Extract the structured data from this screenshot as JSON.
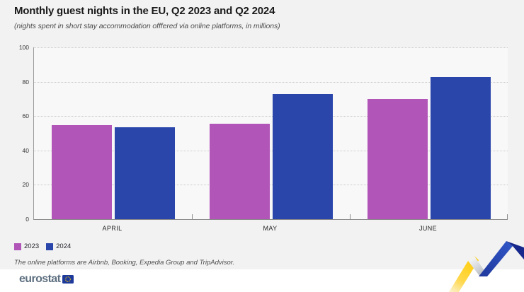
{
  "header": {
    "title": "Monthly guest nights in the EU, Q2 2023 and Q2 2024",
    "subtitle": "(nights spent in short stay accommodation offfered via online platforms, in millions)"
  },
  "chart_data": {
    "type": "bar",
    "title": "Monthly guest nights in the EU, Q2 2023 and Q2 2024",
    "subtitle": "(nights spent in short stay accommodation offfered via online platforms, in millions)",
    "categories": [
      "APRIL",
      "MAY",
      "JUNE"
    ],
    "series": [
      {
        "name": "2023",
        "color": "#b155b8",
        "values": [
          54.9,
          55.5,
          69.8
        ]
      },
      {
        "name": "2024",
        "color": "#2a46ab",
        "values": [
          53.7,
          72.9,
          82.7
        ]
      }
    ],
    "xlabel": "",
    "ylabel": "",
    "ylim": [
      0,
      100
    ],
    "yticks": [
      0,
      20,
      40,
      60,
      80,
      100
    ],
    "grid": "horizontal-dotted",
    "legend_position": "bottom-left"
  },
  "legend": {
    "items": [
      {
        "label": "2023",
        "color": "#b155b8"
      },
      {
        "label": "2024",
        "color": "#2a46ab"
      }
    ]
  },
  "footnote": "The online platforms are Airbnb, Booking, Expedia Group and TripAdvisor.",
  "footer": {
    "logo_text": "eurostat"
  },
  "icons": {
    "eu_flag": "eu-flag-icon",
    "trend_ribbon": "upward-trend-ribbon-icon"
  },
  "colors": {
    "page_bg": "#f2f2f2",
    "plot_bg": "#f8f8f8",
    "footer_bg": "#ffffff",
    "grid": "#c9c9c9",
    "axis": "#8a8a8a",
    "title_text": "#1a1a1a",
    "accent_purple": "#b155b8",
    "accent_blue": "#2a46ab",
    "accent_yellow": "#ffcc00"
  }
}
